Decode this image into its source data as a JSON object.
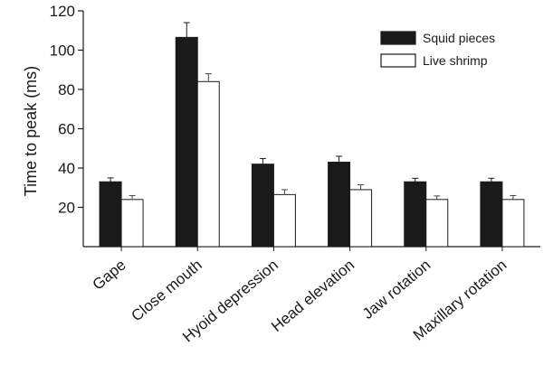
{
  "chart_data": {
    "type": "bar",
    "title": "",
    "xlabel": "",
    "ylabel": "Time to peak (ms)",
    "ylim": [
      0,
      120
    ],
    "yticks": [
      20,
      40,
      60,
      80,
      100,
      120
    ],
    "grid": false,
    "legend_position": "top-right",
    "categories": [
      "Gape",
      "Close mouth",
      "Hyoid depression",
      "Head elevation",
      "Jaw rotation",
      "Maxillary rotation"
    ],
    "series": [
      {
        "name": "Squid pieces",
        "color": "#1a1a1a",
        "values": [
          33,
          106.5,
          42,
          43,
          33,
          33
        ],
        "errors": [
          2,
          7.5,
          2.8,
          3,
          1.8,
          1.8
        ]
      },
      {
        "name": "Live shrimp",
        "color": "#ffffff",
        "values": [
          24,
          84,
          26.5,
          29,
          24,
          24
        ],
        "errors": [
          2,
          4,
          2.5,
          2.5,
          1.8,
          2
        ]
      }
    ]
  }
}
